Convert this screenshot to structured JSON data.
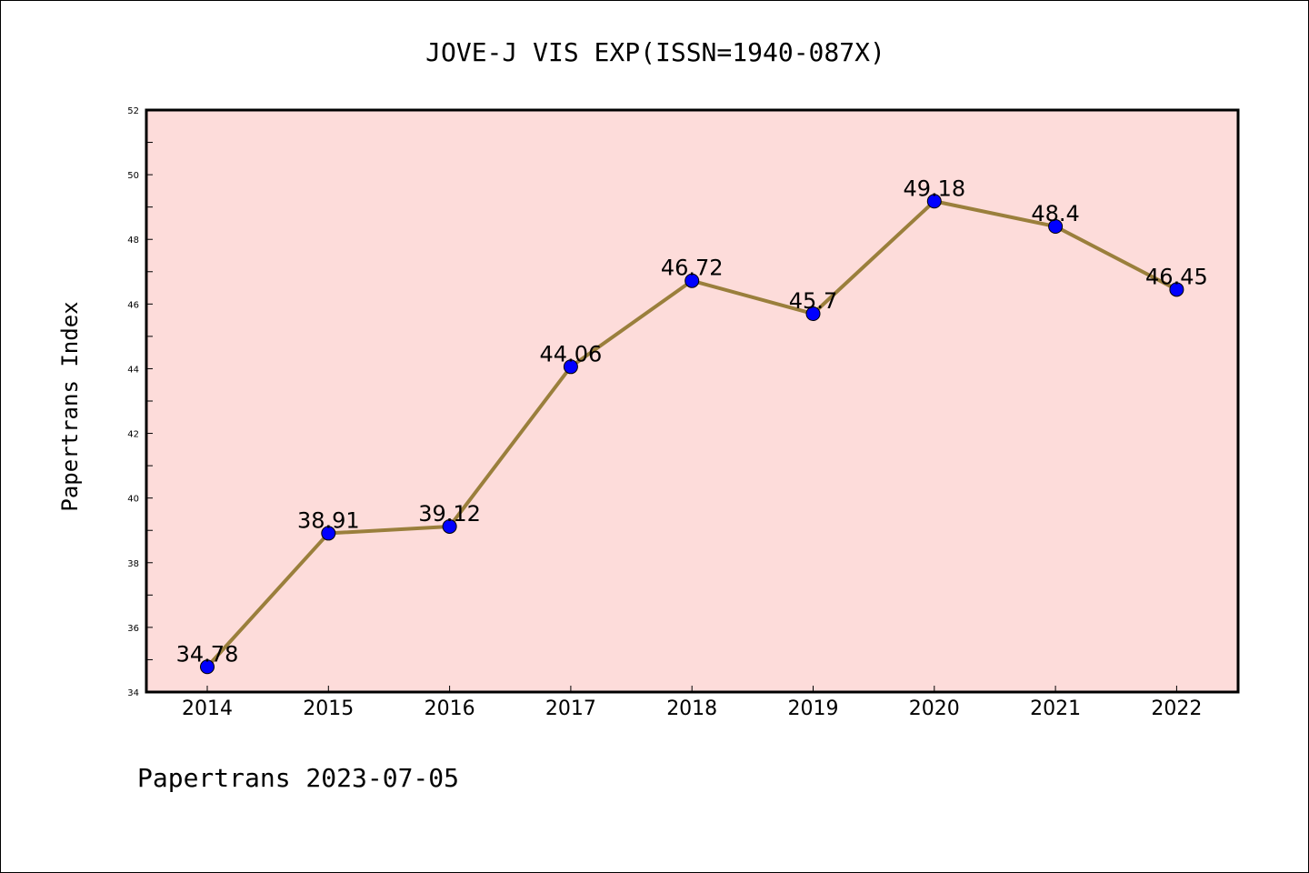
{
  "chart_data": {
    "type": "line",
    "title": "JOVE-J VIS EXP(ISSN=1940-087X)",
    "ylabel": "Papertrans Index",
    "xlabel": "",
    "footer": "Papertrans 2023-07-05",
    "categories": [
      "2014",
      "2015",
      "2016",
      "2017",
      "2018",
      "2019",
      "2020",
      "2021",
      "2022"
    ],
    "values": [
      34.78,
      38.91,
      39.12,
      44.06,
      46.72,
      45.7,
      49.18,
      48.4,
      46.45
    ],
    "data_labels": [
      "34.78",
      "38.91",
      "39.12",
      "44.06",
      "46.72",
      "45.7",
      "49.18",
      "48.4",
      "46.45"
    ],
    "ylim": [
      34,
      52
    ],
    "yticks": [
      "34",
      "36",
      "38",
      "40",
      "42",
      "44",
      "46",
      "48",
      "50",
      "52"
    ],
    "grid": false,
    "colors": {
      "line": "#9a7f3c",
      "marker": "#0000ff",
      "plot_background": "#fddcda"
    }
  }
}
